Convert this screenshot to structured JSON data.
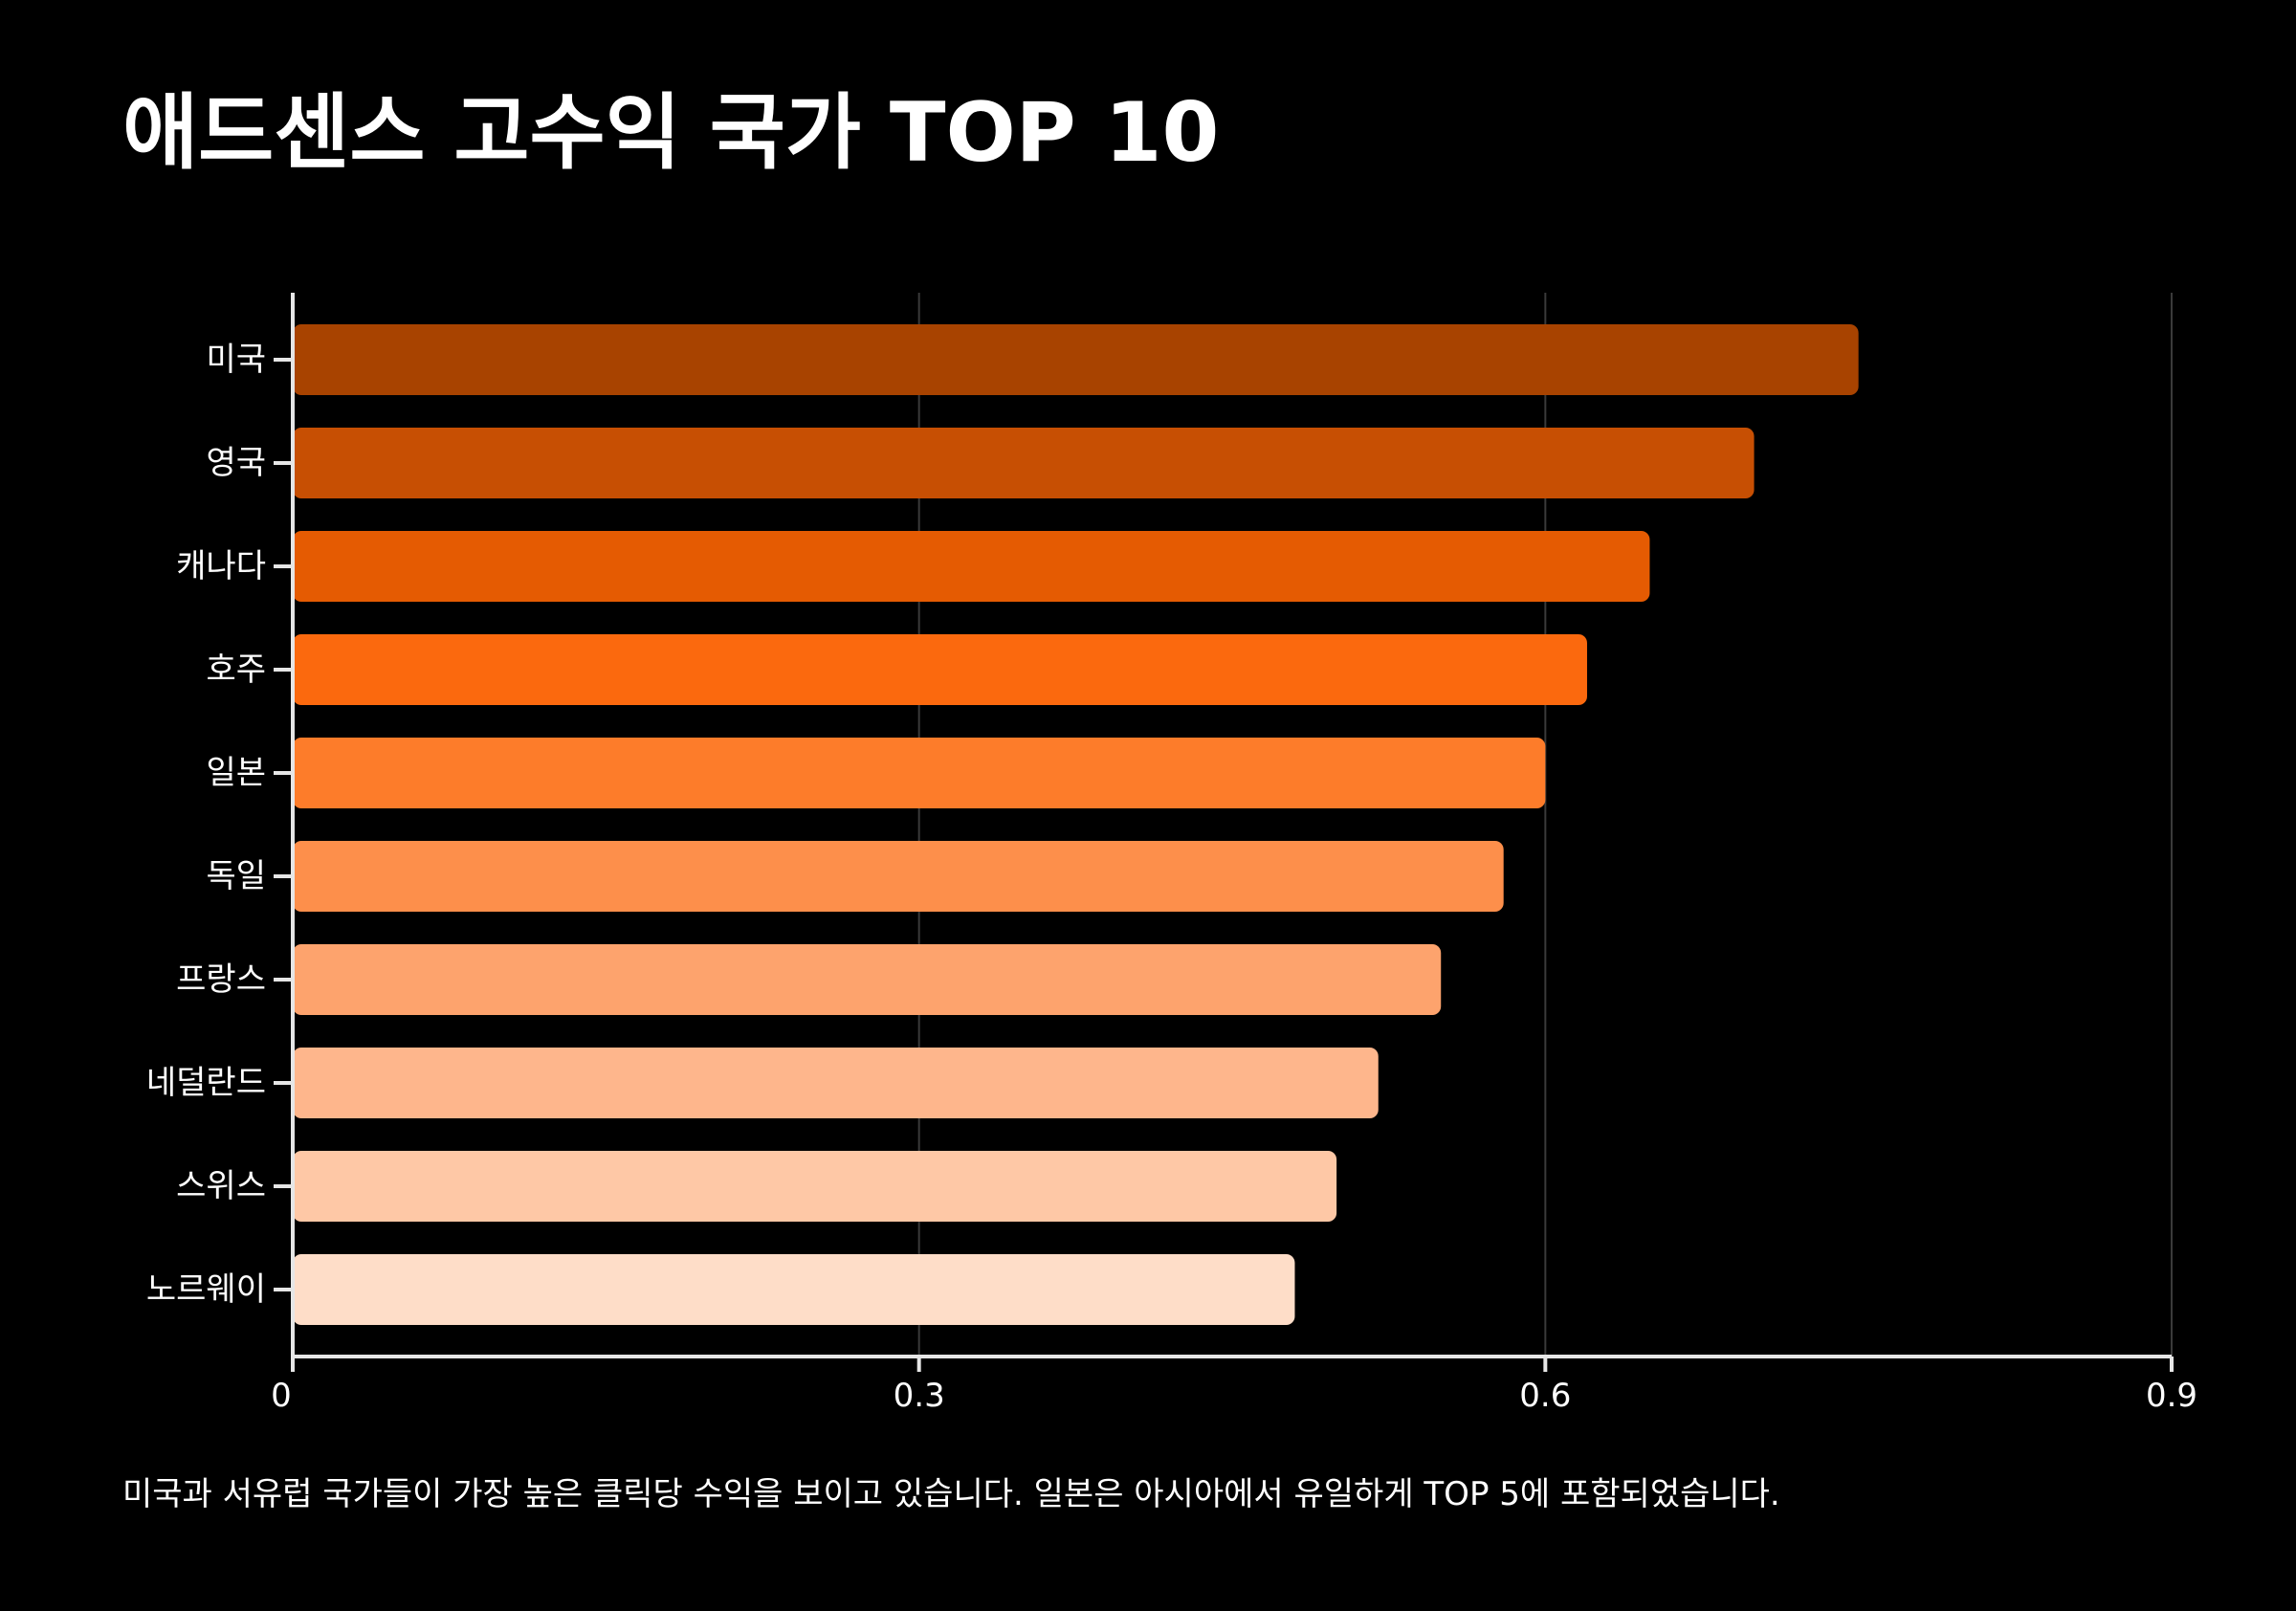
{
  "title": "애드센스 고수익 국가 TOP 10",
  "caption": "미국과 서유럽 국가들이 가장 높은 클릭당 수익을 보이고 있습니다. 일본은 아시아에서 유일하게 TOP 5에 포함되었습니다.",
  "chart_data": {
    "type": "bar",
    "orientation": "horizontal",
    "categories": [
      "미국",
      "영국",
      "캐나다",
      "호주",
      "일본",
      "독일",
      "프랑스",
      "네덜란드",
      "스위스",
      "노르웨이"
    ],
    "values": [
      0.75,
      0.7,
      0.65,
      0.62,
      0.6,
      0.58,
      0.55,
      0.52,
      0.5,
      0.48
    ],
    "colors": [
      "#a84300",
      "#c74f03",
      "#e55b02",
      "#fb690e",
      "#fd7c2a",
      "#fd8f4b",
      "#fda36d",
      "#feb68c",
      "#fec8a6",
      "#feddc8"
    ],
    "xticks": [
      0,
      0.3,
      0.6,
      0.9
    ],
    "xtick_labels": [
      "0",
      "0.3",
      "0.6",
      "0.9"
    ],
    "xlim": [
      0,
      0.9
    ],
    "xlabel": "",
    "ylabel": "",
    "grid": "vertical",
    "legend": "none"
  }
}
